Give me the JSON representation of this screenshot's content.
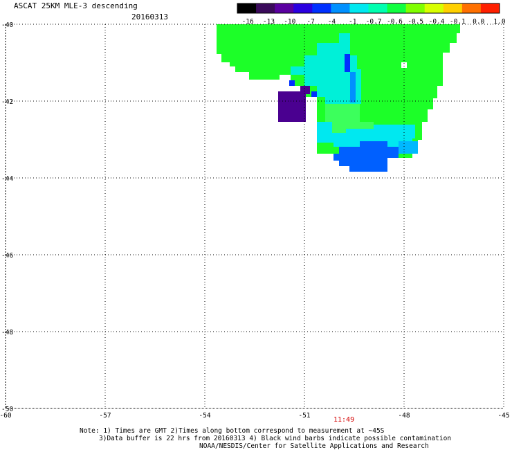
{
  "header": {
    "title": "ASCAT 25KM MLE-3 descending",
    "date": "20160313"
  },
  "colorbar": {
    "labels": [
      "-16",
      "-13",
      "-10",
      "-7",
      "-4",
      "-1",
      "-0.7",
      "-0.6",
      "-0.5",
      "-0.4",
      "-0.1",
      "0.0",
      "1.0"
    ],
    "colors": [
      "#000000",
      "#3a0a5a",
      "#5a00a0",
      "#2a00e0",
      "#0030ff",
      "#0090ff",
      "#00e8f0",
      "#00ffb0",
      "#10ff40",
      "#80ff00",
      "#d8ff00",
      "#ffd000",
      "#ff7000",
      "#ff2000"
    ]
  },
  "axes": {
    "lat_labels": [
      "-40",
      "-42",
      "-44",
      "-46",
      "-48",
      "-50"
    ],
    "lon_labels": [
      "-60",
      "-57",
      "-54",
      "-51",
      "-48",
      "-45"
    ]
  },
  "time_marker": "11:49",
  "notes": {
    "line1": "Note: 1) Times are GMT 2)Times along bottom correspond to measurement at ~45S",
    "line2": "3)Data buffer is 22 hrs from 20160313 4) Black wind barbs indicate possible contamination",
    "line3": "NOAA/NESDIS/Center for Satellite Applications and Research"
  }
}
